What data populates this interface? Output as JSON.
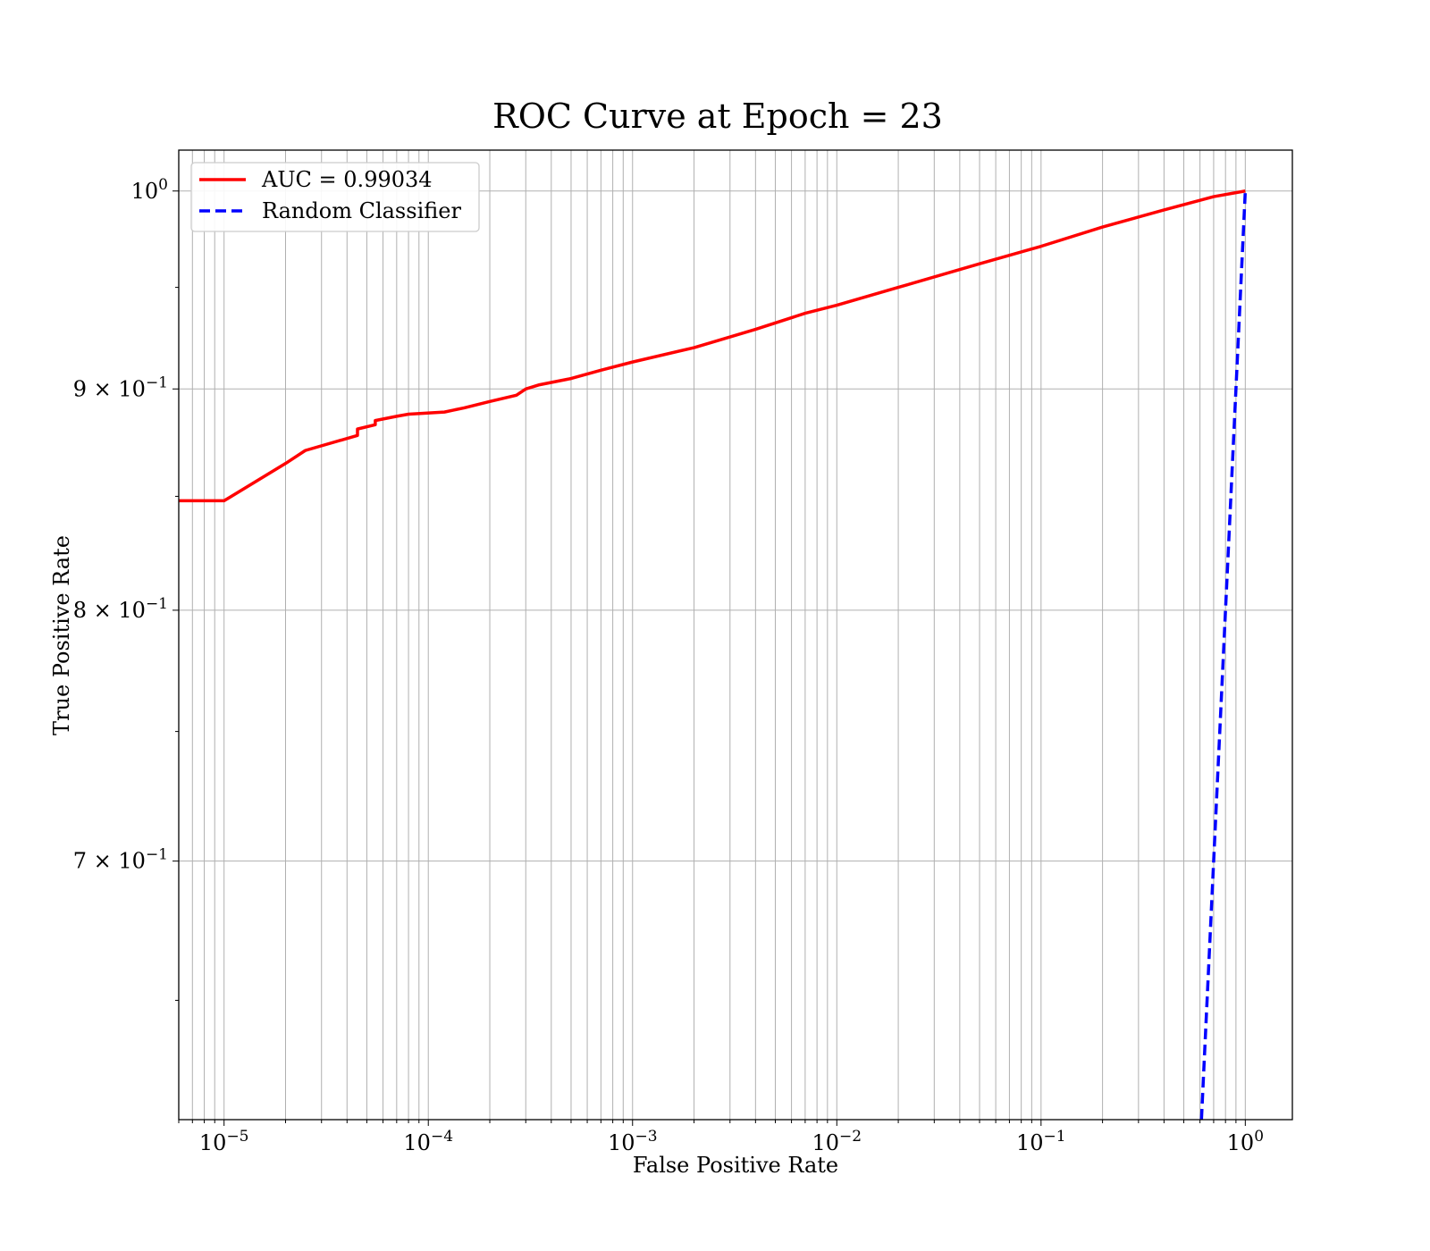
{
  "chart_data": {
    "type": "line",
    "title": "ROC Curve at Epoch = 23",
    "xlabel": "False Positive Rate",
    "ylabel": "True Positive Rate",
    "xscale": "log",
    "yscale": "log",
    "xlim": [
      6e-06,
      1.7
    ],
    "ylim": [
      0.61,
      1.022
    ],
    "grid": true,
    "grid_minor": true,
    "legend_position": "upper-left",
    "x_ticks": [
      {
        "value": 1e-05,
        "base": "10",
        "exp": "−5"
      },
      {
        "value": 0.0001,
        "base": "10",
        "exp": "−4"
      },
      {
        "value": 0.001,
        "base": "10",
        "exp": "−3"
      },
      {
        "value": 0.01,
        "base": "10",
        "exp": "−2"
      },
      {
        "value": 0.1,
        "base": "10",
        "exp": "−1"
      },
      {
        "value": 1,
        "base": "10",
        "exp": "0"
      }
    ],
    "y_ticks": [
      {
        "value": 1.0,
        "pre": "",
        "base": "10",
        "exp": "0"
      },
      {
        "value": 0.9,
        "pre": "9 × ",
        "base": "10",
        "exp": "−1"
      },
      {
        "value": 0.8,
        "pre": "8 × ",
        "base": "10",
        "exp": "−1"
      },
      {
        "value": 0.7,
        "pre": "7 × ",
        "base": "10",
        "exp": "−1"
      }
    ],
    "series": [
      {
        "name": "AUC = 0.99034",
        "color": "#ff0000",
        "style": "solid",
        "x": [
          6e-06,
          1e-05,
          2e-05,
          2.5e-05,
          4.5e-05,
          4.5e-05,
          5.5e-05,
          5.5e-05,
          7e-05,
          8e-05,
          0.00012,
          0.00015,
          0.0002,
          0.00027,
          0.0003,
          0.00035,
          0.0005,
          0.0007,
          0.001,
          0.002,
          0.004,
          0.007,
          0.01,
          0.02,
          0.05,
          0.1,
          0.2,
          0.4,
          0.7,
          1.0
        ],
        "y": [
          0.848,
          0.848,
          0.865,
          0.871,
          0.878,
          0.881,
          0.883,
          0.885,
          0.887,
          0.888,
          0.889,
          0.891,
          0.894,
          0.897,
          0.9,
          0.902,
          0.905,
          0.909,
          0.913,
          0.92,
          0.929,
          0.937,
          0.941,
          0.95,
          0.962,
          0.971,
          0.981,
          0.99,
          0.997,
          1.0
        ]
      },
      {
        "name": "Random Classifier",
        "color": "#0000ff",
        "style": "dashed",
        "x": [
          0.61,
          1.0
        ],
        "y": [
          0.61,
          1.0
        ]
      }
    ]
  }
}
